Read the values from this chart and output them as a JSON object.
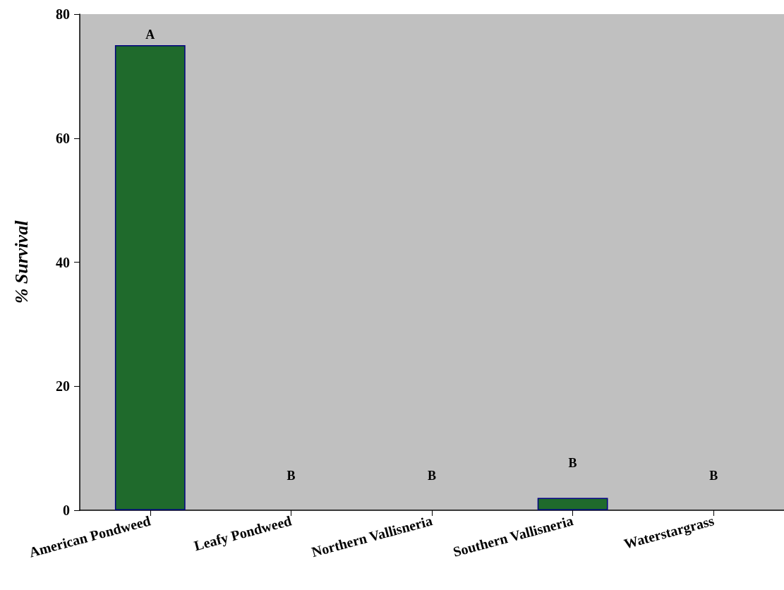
{
  "chart_data": {
    "type": "bar",
    "ylabel": "% Survival",
    "categories": [
      "American Pondweed",
      "Leafy Pondweed",
      "Northern Vallisneria",
      "Southern Vallisneria",
      "Waterstargrass"
    ],
    "values": [
      75,
      0,
      0,
      2,
      0
    ],
    "color": "#1f6a2c",
    "ylim": [
      0,
      80
    ],
    "yticks": [
      0,
      20,
      40,
      60,
      80
    ],
    "grid": false,
    "value_labels": [
      "A",
      "B",
      "B",
      "B",
      "B"
    ]
  }
}
